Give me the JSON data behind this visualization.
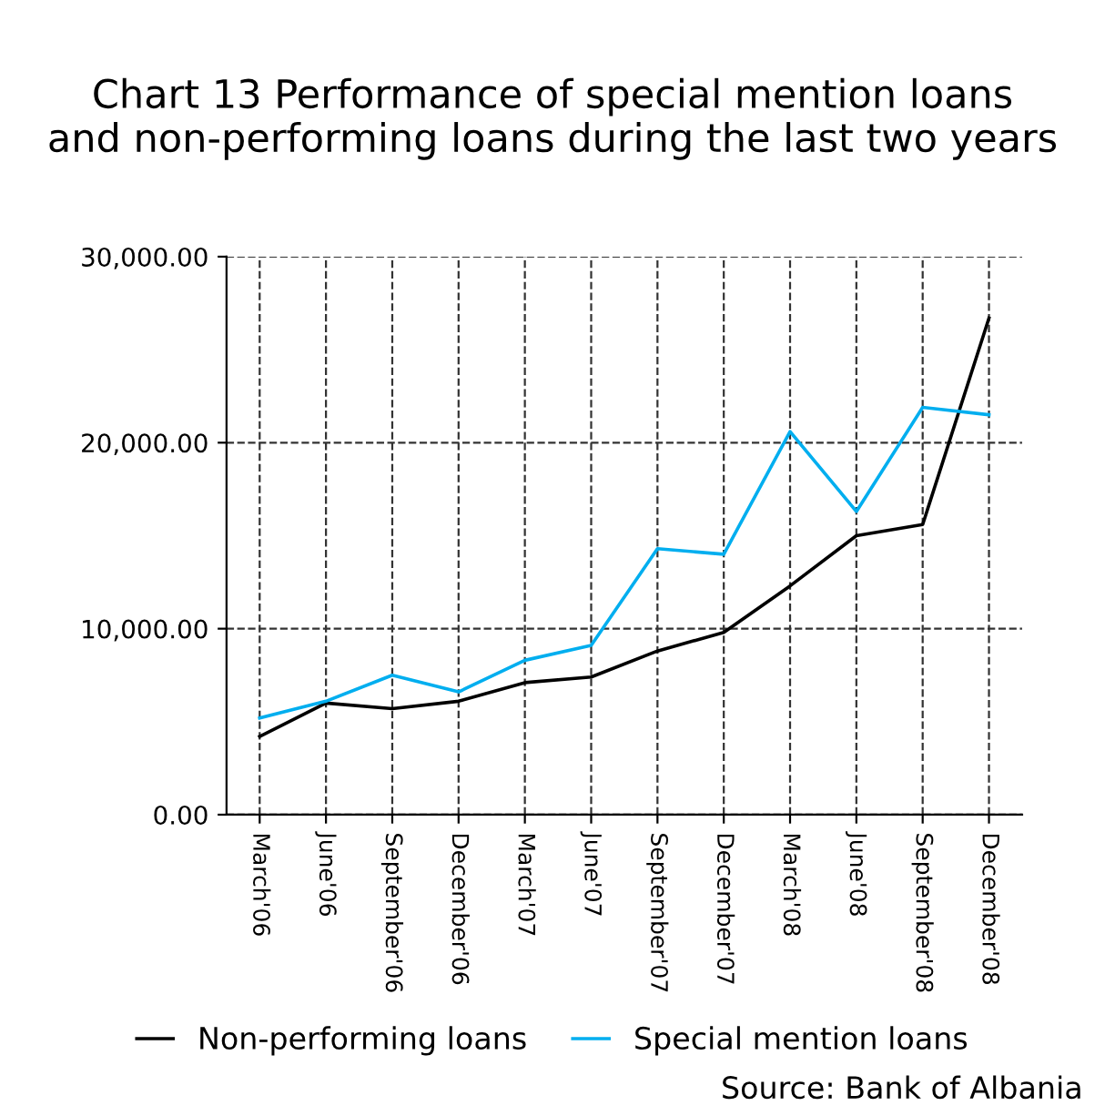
{
  "chart_data": {
    "type": "line",
    "title": "Chart 13 Performance of special mention loans\nand non-performing loans during the last two years",
    "categories": [
      "March'06",
      "June'06",
      "September'06",
      "December'06",
      "March'07",
      "June'07",
      "September'07",
      "December'07",
      "March'08",
      "June'08",
      "September'08",
      "December'08"
    ],
    "series": [
      {
        "name": "Non-performing loans",
        "color": "#000000",
        "values": [
          4200,
          6000,
          5700,
          6100,
          7100,
          7400,
          8800,
          9800,
          12300,
          15000,
          15600,
          26700
        ]
      },
      {
        "name": "Special mention loans",
        "color": "#00aeef",
        "values": [
          5200,
          6100,
          7500,
          6600,
          8300,
          9100,
          14300,
          14000,
          20600,
          16300,
          21900,
          21500
        ]
      }
    ],
    "ylim": [
      0,
      30000
    ],
    "yticks": [
      {
        "value": 0,
        "label": "0.00"
      },
      {
        "value": 10000,
        "label": "10,000.00"
      },
      {
        "value": 20000,
        "label": "20,000.00"
      },
      {
        "value": 30000,
        "label": "30,000.00"
      }
    ],
    "grid": true,
    "legend": "bottom",
    "line_style": "solid",
    "annotations": [
      "Source: Bank of Albania"
    ]
  }
}
